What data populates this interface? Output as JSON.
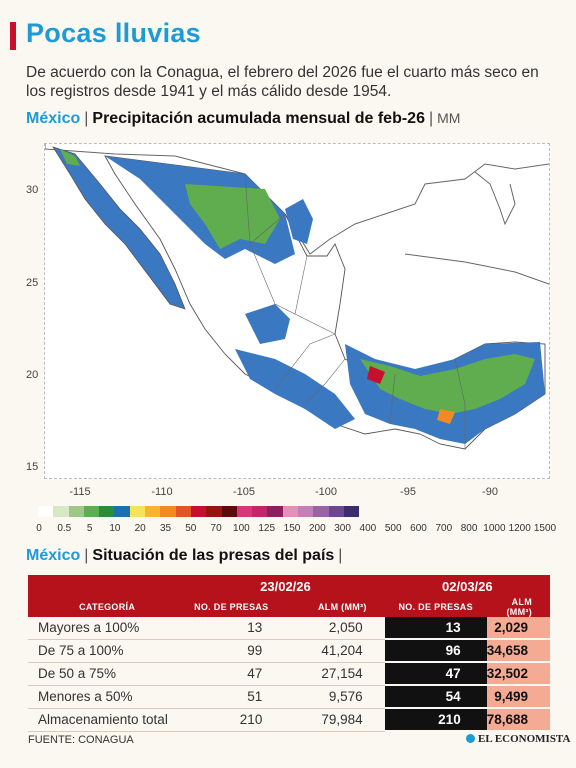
{
  "title": "Pocas lluvias",
  "subtitle": "De acuerdo con la Conagua, el febrero del 2026 fue el cuarto más seco en los registros desde 1941 y el más cálido desde 1954.",
  "map_section": {
    "country": "México",
    "separator": "|",
    "title": "Precipitación acumulada mensual de feb-26",
    "unit": "MM",
    "latitude_ticks": [
      "30",
      "25",
      "20",
      "15"
    ],
    "longitude_ticks": [
      "-115",
      "-110",
      "-105",
      "-100",
      "-95",
      "-90"
    ],
    "legend_labels": [
      "0",
      "0.5",
      "5",
      "10",
      "20",
      "35",
      "50",
      "70",
      "100",
      "125",
      "150",
      "200",
      "300",
      "400",
      "500",
      "600",
      "700",
      "800",
      "1000",
      "1200",
      "1500"
    ],
    "legend_colors": [
      "#ffffff",
      "#d6e8c4",
      "#9fc886",
      "#5fad4f",
      "#2e8b3a",
      "#1e6fae",
      "#f3e25c",
      "#f5b52f",
      "#f08a23",
      "#e2552a",
      "#c8102e",
      "#96160f",
      "#5a0d0a",
      "#d9357a",
      "#c42469",
      "#8a2060",
      "#e390b8",
      "#c47fb6",
      "#9a63a8",
      "#6b4791",
      "#3c2c6e"
    ],
    "colors": {
      "land": "#ffffff",
      "border": "#555555",
      "dry": "#3a78c2",
      "wet": "#5fad4f",
      "sea": "#ffffff"
    }
  },
  "dams_section": {
    "country": "México",
    "separator": "|",
    "title": "Situación de las presas del país",
    "date1": "23/02/26",
    "date2": "02/03/26",
    "headers": {
      "category": "CATEGORÍA",
      "dams": "NO. DE PRESAS",
      "storage": "ALM (MM³)"
    },
    "rows": [
      {
        "category": "Mayores a 100%",
        "dams1": "13",
        "storage1": "2,050",
        "dams2": "13",
        "storage2": "2,029"
      },
      {
        "category": "De 75 a 100%",
        "dams1": "99",
        "storage1": "41,204",
        "dams2": "96",
        "storage2": "34,658"
      },
      {
        "category": "De 50 a 75%",
        "dams1": "47",
        "storage1": "27,154",
        "dams2": "47",
        "storage2": "32,502"
      },
      {
        "category": "Menores a 50%",
        "dams1": "51",
        "storage1": "9,576",
        "dams2": "54",
        "storage2": "9,499"
      },
      {
        "category": "Almacenamiento total",
        "dams1": "210",
        "storage1": "79,984",
        "dams2": "210",
        "storage2": "78,688"
      }
    ]
  },
  "source": "FUENTE: CONAGUA",
  "brand": "EL ECONOMISTA"
}
